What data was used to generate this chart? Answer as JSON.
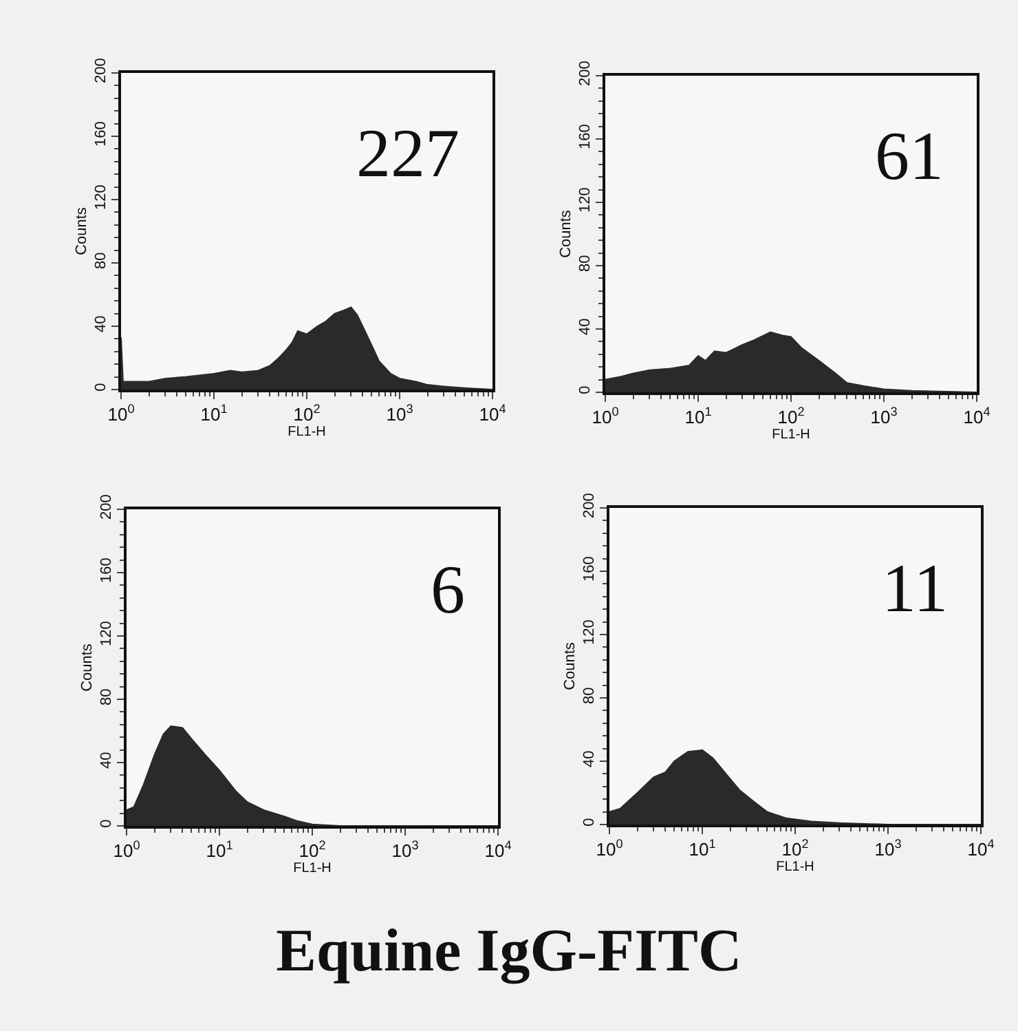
{
  "chart_data": [
    {
      "type": "area",
      "xlabel": "FL1-H",
      "ylabel": "Counts",
      "log": "x",
      "color": "#2a2a2a",
      "xlim": [
        1,
        10000
      ],
      "ylim": [
        0,
        200
      ],
      "xticks": [
        {
          "value": 1,
          "label": "10$^{0}$"
        },
        {
          "value": 10,
          "label": "10$^{1}$"
        },
        {
          "value": 100,
          "label": "10$^{2}$"
        },
        {
          "value": 1000,
          "label": "10$^{3}$"
        },
        {
          "value": 10000,
          "label": "10$^{4}$"
        }
      ],
      "yticks": [
        0,
        40,
        80,
        120,
        160,
        200
      ],
      "annotations": [
        "227"
      ],
      "x": [
        1,
        1.05,
        2,
        3,
        5,
        10,
        15,
        20,
        30,
        40,
        50,
        60,
        70,
        80,
        100,
        130,
        160,
        200,
        250,
        300,
        350,
        400,
        500,
        600,
        800,
        1000,
        1500,
        2000,
        3000,
        5000,
        10000
      ],
      "values": [
        33,
        5,
        5,
        7,
        8,
        10,
        12,
        11,
        12,
        15,
        20,
        25,
        30,
        37,
        35,
        40,
        43,
        48,
        50,
        52,
        47,
        40,
        28,
        18,
        10,
        7,
        5,
        3,
        2,
        1,
        0
      ]
    },
    {
      "type": "area",
      "xlabel": "FL1-H",
      "ylabel": "Counts",
      "log": "x",
      "color": "#2a2a2a",
      "xlim": [
        1,
        10000
      ],
      "ylim": [
        0,
        200
      ],
      "xticks": [
        {
          "value": 1,
          "label": "10$^{0}$"
        },
        {
          "value": 10,
          "label": "10$^{1}$"
        },
        {
          "value": 100,
          "label": "10$^{2}$"
        },
        {
          "value": 1000,
          "label": "10$^{3}$"
        },
        {
          "value": 10000,
          "label": "10$^{4}$"
        }
      ],
      "yticks": [
        0,
        40,
        80,
        120,
        160,
        200
      ],
      "annotations": [
        "61"
      ],
      "x": [
        1,
        1.5,
        2,
        3,
        5,
        8,
        10,
        12,
        15,
        20,
        30,
        40,
        60,
        80,
        100,
        130,
        200,
        300,
        400,
        600,
        1000,
        2000,
        10000
      ],
      "values": [
        8,
        10,
        12,
        14,
        15,
        17,
        23,
        20,
        26,
        25,
        30,
        33,
        38,
        36,
        35,
        28,
        20,
        12,
        6,
        4,
        2,
        1,
        0
      ]
    },
    {
      "type": "area",
      "xlabel": "FL1-H",
      "ylabel": "Counts",
      "log": "x",
      "color": "#2a2a2a",
      "xlim": [
        1,
        10000
      ],
      "ylim": [
        0,
        200
      ],
      "xticks": [
        {
          "value": 1,
          "label": "10$^{0}$"
        },
        {
          "value": 10,
          "label": "10$^{1}$"
        },
        {
          "value": 100,
          "label": "10$^{2}$"
        },
        {
          "value": 1000,
          "label": "10$^{3}$"
        },
        {
          "value": 10000,
          "label": "10$^{4}$"
        }
      ],
      "yticks": [
        0,
        40,
        80,
        120,
        160,
        200
      ],
      "annotations": [
        "6"
      ],
      "x": [
        1,
        1.2,
        1.5,
        2,
        2.5,
        3,
        4,
        5,
        7,
        10,
        15,
        20,
        30,
        50,
        70,
        100,
        200,
        10000
      ],
      "values": [
        10,
        12,
        25,
        45,
        58,
        63,
        62,
        55,
        45,
        35,
        22,
        15,
        10,
        6,
        3,
        1,
        0,
        0
      ]
    },
    {
      "type": "area",
      "xlabel": "FL1-H",
      "ylabel": "Counts",
      "log": "x",
      "color": "#2a2a2a",
      "xlim": [
        1,
        10000
      ],
      "ylim": [
        0,
        200
      ],
      "xticks": [
        {
          "value": 1,
          "label": "10$^{0}$"
        },
        {
          "value": 10,
          "label": "10$^{1}$"
        },
        {
          "value": 100,
          "label": "10$^{2}$"
        },
        {
          "value": 1000,
          "label": "10$^{3}$"
        },
        {
          "value": 10000,
          "label": "10$^{4}$"
        }
      ],
      "yticks": [
        0,
        40,
        80,
        120,
        160,
        200
      ],
      "annotations": [
        "11",
        "Equine IgG-FITC"
      ],
      "x": [
        1,
        1.3,
        2,
        3,
        4,
        5,
        7,
        10,
        13,
        18,
        25,
        35,
        50,
        80,
        150,
        300,
        1000,
        10000
      ],
      "values": [
        8,
        10,
        20,
        30,
        33,
        40,
        46,
        47,
        42,
        32,
        22,
        15,
        8,
        4,
        2,
        1,
        0,
        0
      ]
    }
  ]
}
